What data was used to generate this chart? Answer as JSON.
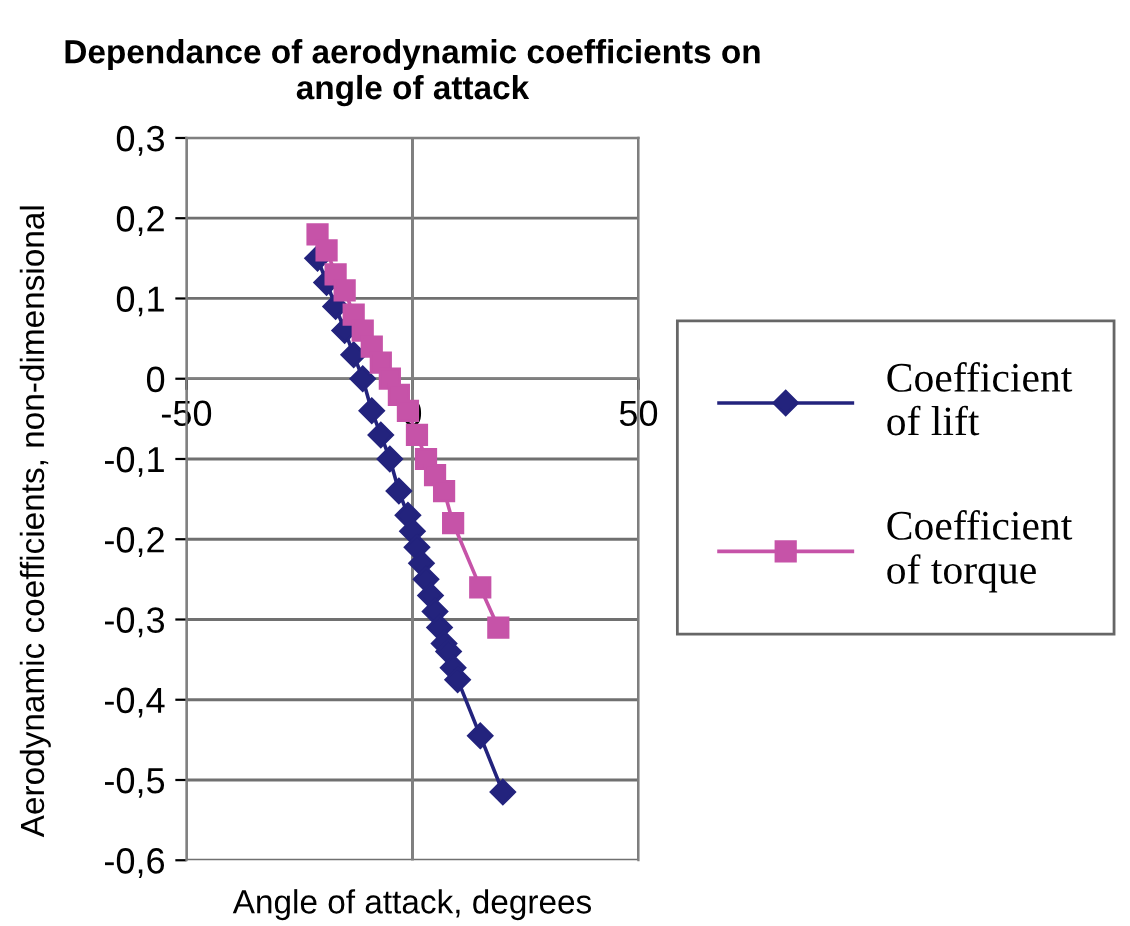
{
  "chart_data": {
    "type": "line",
    "title": "Dependance of aerodynamic coefficients on\nangle of attack",
    "xlabel": "Angle of attack, degrees",
    "ylabel": "Aerodynamic coefficients, non-dimensional",
    "xlim": [
      -50,
      50
    ],
    "ylim": [
      -0.6,
      0.3
    ],
    "xticks": [
      -50,
      0,
      50
    ],
    "yticks": [
      {
        "value": -0.6,
        "label": "-0,6"
      },
      {
        "value": -0.5,
        "label": "-0,5"
      },
      {
        "value": -0.4,
        "label": "-0,4"
      },
      {
        "value": -0.3,
        "label": "-0,3"
      },
      {
        "value": -0.2,
        "label": "-0,2"
      },
      {
        "value": -0.1,
        "label": "-0,1"
      },
      {
        "value": 0,
        "label": "0"
      },
      {
        "value": 0.1,
        "label": "0,1"
      },
      {
        "value": 0.2,
        "label": "0,2"
      },
      {
        "value": 0.3,
        "label": "0,3"
      }
    ],
    "grid": true,
    "legend": "right",
    "series": [
      {
        "name": "Coefficient\nof lift",
        "color": "#23237d",
        "marker": "diamond",
        "x": [
          -21,
          -19,
          -17,
          -15,
          -13,
          -11,
          -9,
          -7,
          -5,
          -3,
          -1,
          0,
          1,
          2,
          3,
          4,
          5,
          6,
          7,
          8,
          9,
          10,
          15,
          20
        ],
        "values": [
          0.15,
          0.12,
          0.09,
          0.06,
          0.03,
          0.0,
          -0.04,
          -0.07,
          -0.1,
          -0.14,
          -0.17,
          -0.19,
          -0.21,
          -0.23,
          -0.25,
          -0.27,
          -0.29,
          -0.31,
          -0.33,
          -0.34,
          -0.36,
          -0.375,
          -0.445,
          -0.515
        ]
      },
      {
        "name": "Coefficient\nof torque",
        "color": "#c653a8",
        "marker": "square",
        "x": [
          -21,
          -19,
          -17,
          -15,
          -13,
          -11,
          -9,
          -7,
          -5,
          -3,
          -1,
          1,
          3,
          5,
          7,
          9,
          15,
          19
        ],
        "values": [
          0.18,
          0.16,
          0.13,
          0.11,
          0.08,
          0.06,
          0.04,
          0.02,
          0.0,
          -0.02,
          -0.04,
          -0.07,
          -0.1,
          -0.12,
          -0.14,
          -0.18,
          -0.26,
          -0.31
        ]
      }
    ]
  }
}
